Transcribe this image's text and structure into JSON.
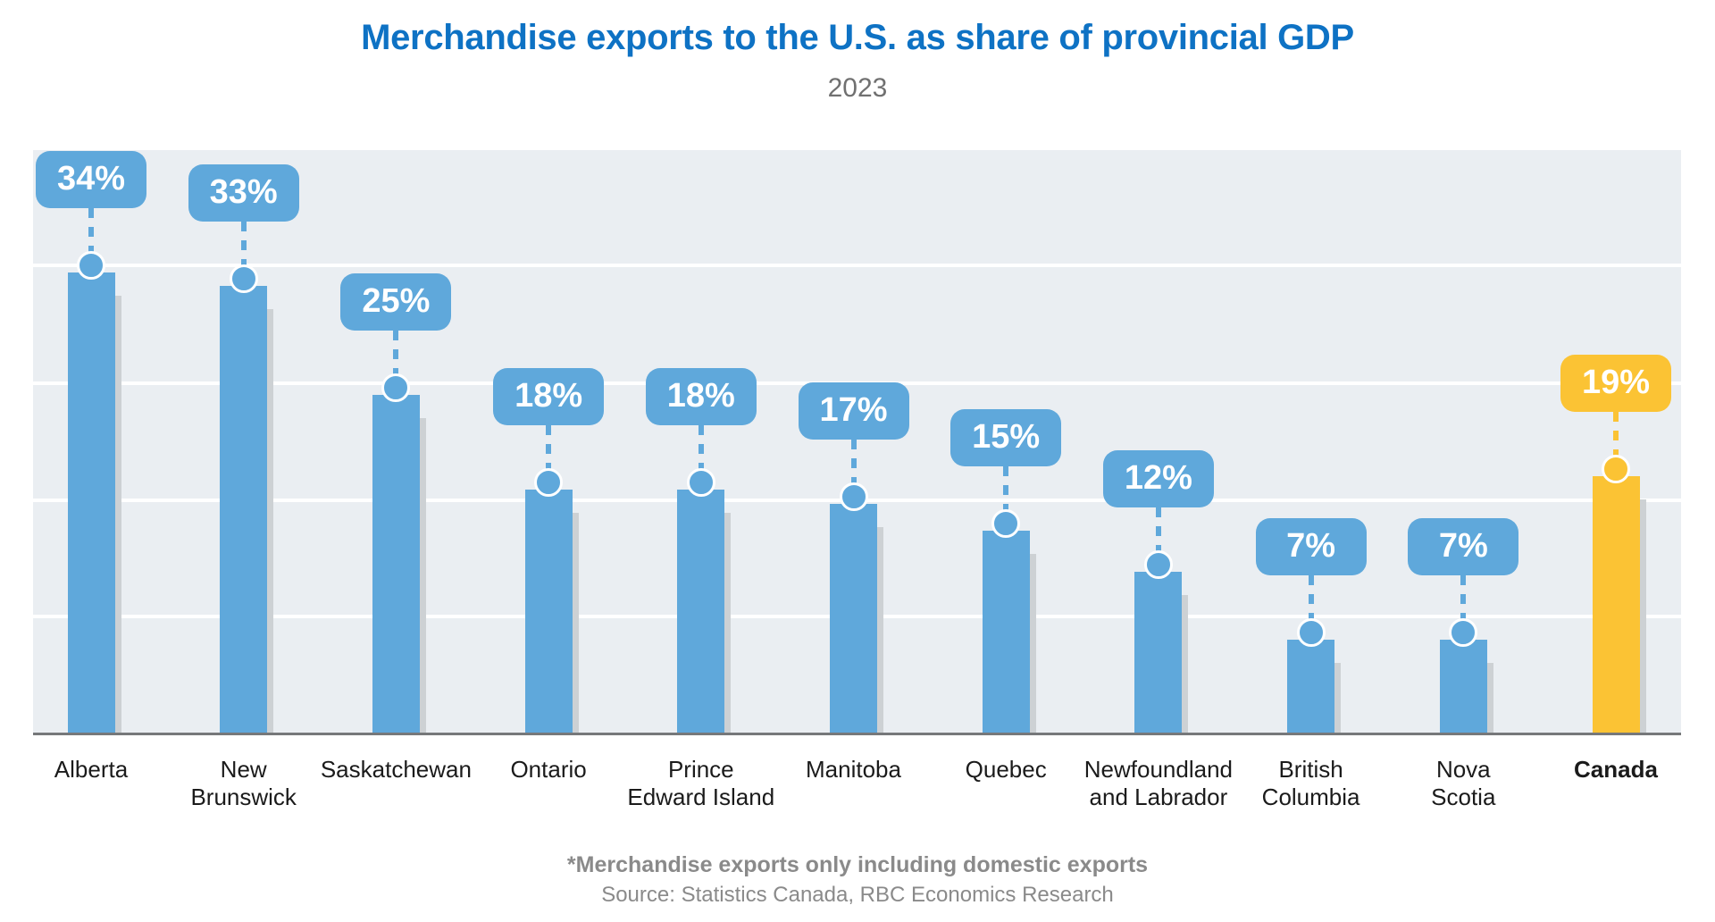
{
  "chart_data": {
    "type": "bar",
    "title": "Merchandise exports to the U.S. as share of provincial GDP",
    "subtitle": "2023",
    "categories": [
      "Alberta",
      "New Brunswick",
      "Saskatchewan",
      "Ontario",
      "Prince Edward Island",
      "Manitoba",
      "Quebec",
      "Newfoundland and Labrador",
      "British Columbia",
      "Nova Scotia",
      "Canada"
    ],
    "label_lines": [
      [
        "Alberta"
      ],
      [
        "New",
        "Brunswick"
      ],
      [
        "Saskatchewan"
      ],
      [
        "Ontario"
      ],
      [
        "Prince",
        "Edward Island"
      ],
      [
        "Manitoba"
      ],
      [
        "Quebec"
      ],
      [
        "Newfoundland",
        "and Labrador"
      ],
      [
        "British",
        "Columbia"
      ],
      [
        "Nova",
        "Scotia"
      ],
      [
        "Canada"
      ]
    ],
    "values": [
      34,
      33,
      25,
      18,
      18,
      17,
      15,
      12,
      7,
      7,
      19
    ],
    "value_labels": [
      "34%",
      "33%",
      "25%",
      "18%",
      "18%",
      "17%",
      "15%",
      "12%",
      "7%",
      "7%",
      "19%"
    ],
    "highlight_category": "Canada",
    "ylim": [
      0,
      43
    ],
    "grid": "4 horizontal white gridlines, no y-axis tick labels",
    "legend": "none",
    "colors": {
      "bar": "#5FA8DB",
      "highlight_bar": "#FBC334",
      "bar_shadow": "#CDD1D4",
      "plot_background": "#EAEEF2",
      "gridline": "#FFFFFF",
      "baseline": "#76787A",
      "title": "#0E72C4",
      "subtitle": "#707070",
      "axis_label": "#1B1B1B",
      "footnote": "#8A8A8A",
      "badge_text": "#FFFFFF"
    },
    "footnote": "*Merchandise exports only including domestic exports",
    "source": "Source: Statistics Canada, RBC Economics Research"
  }
}
